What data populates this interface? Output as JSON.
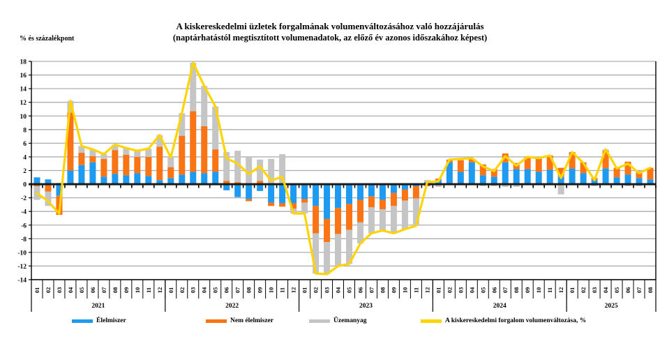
{
  "title": {
    "line1": "A kiskereskedelmi üzletek forgalmának volumenváltozásához való hozzájárulás",
    "line2": "(naptárhatástól megtisztított volumenadatok, az előző év azonos időszakához képest)"
  },
  "y_axis_title": "% és százalékpont",
  "legend": {
    "items": [
      {
        "label": "Élelmiszer",
        "color": "#1E9BF0"
      },
      {
        "label": "Nem élelmiszer",
        "color": "#F97415"
      },
      {
        "label": "Üzemanyag",
        "color": "#C5C5C5"
      },
      {
        "label": "A kiskereskedelmi forgalom volumenváltozása, %",
        "color": "#FFD400"
      }
    ]
  },
  "chart_data": {
    "type": "bar",
    "subtype": "stacked-bars-with-line",
    "grid": true,
    "ylim": [
      -14,
      18
    ],
    "ytick_step": 2,
    "years": [
      {
        "label": "2021",
        "months": 12
      },
      {
        "label": "2022",
        "months": 12
      },
      {
        "label": "2023",
        "months": 12
      },
      {
        "label": "2024",
        "months": 12
      },
      {
        "label": "2025",
        "months": 8
      }
    ],
    "month_labels": [
      "01",
      "02",
      "03",
      "04",
      "05",
      "06",
      "07",
      "08",
      "09",
      "10",
      "11",
      "12",
      "01",
      "02",
      "03",
      "04",
      "05",
      "06",
      "07",
      "08",
      "09",
      "10",
      "11",
      "12",
      "01",
      "02",
      "03",
      "04",
      "05",
      "06",
      "07",
      "08",
      "09",
      "10",
      "11",
      "12",
      "01",
      "02",
      "03",
      "04",
      "05",
      "06",
      "07",
      "08",
      "09",
      "10",
      "11",
      "12",
      "01",
      "02",
      "03",
      "04",
      "05",
      "06",
      "07",
      "08"
    ],
    "series": [
      {
        "name": "Élelmiszer",
        "color": "#1E9BF0",
        "values": [
          1.0,
          0.7,
          -1.7,
          2.0,
          2.8,
          3.2,
          1.1,
          1.5,
          1.3,
          1.6,
          1.2,
          0.6,
          0.9,
          1.4,
          1.8,
          1.6,
          1.8,
          -0.9,
          -1.9,
          -2.2,
          -1.0,
          -2.7,
          -2.8,
          -2.8,
          -2.2,
          -3.2,
          -5.1,
          -3.5,
          -2.9,
          -2.3,
          -1.8,
          -2.3,
          -1.3,
          -0.8,
          -0.3,
          0.3,
          0.6,
          3.2,
          1.8,
          3.2,
          1.3,
          1.1,
          3.2,
          2.2,
          2.2,
          1.8,
          2.1,
          1.1,
          2.3,
          1.6,
          0.6,
          2.3,
          1.0,
          1.4,
          0.9,
          0.7
        ]
      },
      {
        "name": "Nem élelmiszer",
        "color": "#F97415",
        "values": [
          -0.3,
          -1.1,
          -2.8,
          8.5,
          1.8,
          0.9,
          2.6,
          3.5,
          3.0,
          2.4,
          2.8,
          4.9,
          1.6,
          5.7,
          8.9,
          6.9,
          3.3,
          0.5,
          0.3,
          -0.3,
          0.5,
          -0.5,
          -0.5,
          -0.8,
          -0.5,
          -4.0,
          -3.4,
          -3.8,
          -3.8,
          -3.3,
          -1.6,
          -1.4,
          -1.9,
          -1.6,
          -1.8,
          -0.3,
          0.2,
          0.4,
          1.7,
          0.5,
          1.6,
          1.1,
          1.3,
          0.9,
          1.8,
          2.0,
          2.1,
          1.3,
          2.4,
          1.6,
          0.3,
          2.6,
          1.4,
          1.9,
          1.0,
          1.7
        ]
      },
      {
        "name": "Üzemanyag",
        "color": "#C5C5C5",
        "values": [
          -2.0,
          -2.1,
          0.2,
          1.7,
          1.0,
          1.0,
          0.7,
          0.8,
          1.0,
          0.9,
          1.2,
          1.7,
          1.4,
          3.3,
          7.1,
          5.9,
          6.3,
          4.2,
          4.6,
          4.0,
          3.1,
          3.7,
          4.4,
          -0.7,
          -1.6,
          -5.9,
          -4.7,
          -4.7,
          -5.0,
          -3.1,
          -3.8,
          -3.1,
          -4.0,
          -4.2,
          -4.0,
          0.3,
          -0.4,
          0.0,
          0.2,
          0.1,
          -0.3,
          -0.3,
          -0.4,
          -0.4,
          0.0,
          0.0,
          0.0,
          -1.5,
          0.0,
          -0.1,
          -0.3,
          0.2,
          -0.1,
          -0.3,
          -0.3,
          0.0
        ]
      }
    ],
    "line": {
      "name": "A kiskereskedelmi forgalom volumenváltozása, %",
      "color": "#FFD400",
      "values": [
        -1.3,
        -2.5,
        -4.3,
        12.2,
        5.6,
        5.1,
        4.4,
        5.8,
        5.3,
        4.9,
        5.2,
        7.2,
        3.9,
        10.4,
        17.8,
        14.4,
        11.4,
        3.8,
        3.0,
        1.5,
        2.6,
        0.5,
        1.1,
        -4.3,
        -4.3,
        -13.1,
        -13.2,
        -12.0,
        -11.7,
        -8.7,
        -7.2,
        -6.8,
        -7.2,
        -6.6,
        -6.1,
        0.3,
        0.4,
        3.6,
        3.7,
        3.8,
        2.6,
        1.9,
        4.1,
        2.7,
        4.0,
        3.8,
        4.2,
        0.9,
        4.7,
        3.1,
        0.6,
        5.1,
        2.3,
        3.0,
        1.6,
        2.4
      ]
    }
  }
}
